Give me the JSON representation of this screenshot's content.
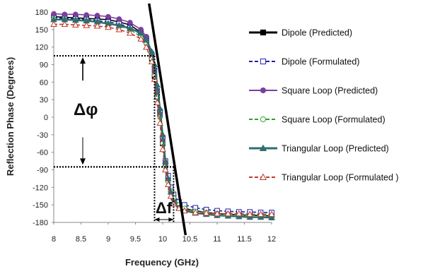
{
  "chart_data": {
    "type": "line",
    "title": "",
    "xlabel": "Frequency (GHz)",
    "ylabel": "Reflection Phase (Degrees)",
    "xlim": [
      8,
      12
    ],
    "ylim": [
      -180,
      180
    ],
    "xticks": [
      "8",
      "8.5",
      "9",
      "9.5",
      "10",
      "10.5",
      "11",
      "11.5",
      "12"
    ],
    "yticks": [
      "180",
      "150",
      "120",
      "90",
      "60",
      "30",
      "0",
      "-30",
      "-60",
      "-90",
      "-120",
      "-150",
      "-180"
    ],
    "grid": false,
    "legend_position": "right",
    "series": [
      {
        "name": "Dipole (Predicted)",
        "color": "#000000",
        "marker": "square-filled",
        "dashed": false,
        "x": [
          8,
          8.2,
          8.4,
          8.6,
          8.8,
          9,
          9.2,
          9.4,
          9.6,
          9.7,
          9.8,
          9.85,
          9.9,
          9.95,
          10,
          10.05,
          10.1,
          10.15,
          10.2,
          10.3,
          10.4,
          10.6,
          10.8,
          11,
          11.2,
          11.4,
          11.6,
          11.8,
          12
        ],
        "y": [
          172,
          171,
          170,
          169,
          168,
          167,
          163,
          158,
          145,
          135,
          100,
          70,
          35,
          5,
          -45,
          -80,
          -105,
          -125,
          -138,
          -150,
          -156,
          -160,
          -163,
          -165,
          -166,
          -167,
          -168,
          -168,
          -169
        ]
      },
      {
        "name": "Dipole (Formulated)",
        "color": "#1f1fa8",
        "marker": "square-open",
        "dashed": true,
        "x": [
          8,
          8.2,
          8.4,
          8.6,
          8.8,
          9,
          9.2,
          9.4,
          9.6,
          9.7,
          9.8,
          9.85,
          9.9,
          9.95,
          10,
          10.05,
          10.1,
          10.15,
          10.2,
          10.3,
          10.4,
          10.6,
          10.8,
          11,
          11.2,
          11.4,
          11.6,
          11.8,
          12
        ],
        "y": [
          170,
          169,
          168,
          167,
          165,
          163,
          160,
          153,
          142,
          130,
          105,
          80,
          45,
          10,
          -35,
          -75,
          -100,
          -120,
          -132,
          -145,
          -150,
          -155,
          -158,
          -160,
          -161,
          -162,
          -162,
          -163,
          -163
        ]
      },
      {
        "name": "Square Loop (Predicted)",
        "color": "#7b3fa0",
        "marker": "circle-filled",
        "dashed": false,
        "x": [
          8,
          8.2,
          8.4,
          8.6,
          8.8,
          9,
          9.2,
          9.4,
          9.6,
          9.7,
          9.8,
          9.85,
          9.9,
          9.95,
          10,
          10.05,
          10.1,
          10.15,
          10.2,
          10.3,
          10.4,
          10.6,
          10.8,
          11,
          11.2,
          11.4,
          11.6,
          11.8,
          12
        ],
        "y": [
          177,
          176,
          176,
          175,
          174,
          172,
          168,
          162,
          150,
          138,
          110,
          80,
          45,
          5,
          -40,
          -80,
          -108,
          -128,
          -140,
          -152,
          -158,
          -163,
          -166,
          -168,
          -169,
          -170,
          -171,
          -171,
          -172
        ]
      },
      {
        "name": "Square Loop (Formulated)",
        "color": "#2ca02c",
        "marker": "circle-open",
        "dashed": true,
        "x": [
          8,
          8.2,
          8.4,
          8.6,
          8.8,
          9,
          9.2,
          9.4,
          9.6,
          9.7,
          9.8,
          9.85,
          9.9,
          9.95,
          10,
          10.05,
          10.1,
          10.15,
          10.2,
          10.3,
          10.4,
          10.6,
          10.8,
          11,
          11.2,
          11.4,
          11.6,
          11.8,
          12
        ],
        "y": [
          168,
          167,
          166,
          165,
          163,
          160,
          156,
          150,
          138,
          126,
          100,
          72,
          35,
          0,
          -45,
          -85,
          -110,
          -126,
          -138,
          -150,
          -156,
          -161,
          -163,
          -165,
          -166,
          -167,
          -168,
          -168,
          -169
        ]
      },
      {
        "name": "Triangular Loop (Predicted)",
        "color": "#2e6e6e",
        "marker": "triangle-filled",
        "dashed": false,
        "x": [
          8,
          8.2,
          8.4,
          8.6,
          8.8,
          9,
          9.2,
          9.4,
          9.6,
          9.7,
          9.8,
          9.85,
          9.9,
          9.95,
          10,
          10.05,
          10.1,
          10.15,
          10.2,
          10.3,
          10.4,
          10.6,
          10.8,
          11,
          11.2,
          11.4,
          11.6,
          11.8,
          12
        ],
        "y": [
          167,
          167,
          166,
          165,
          163,
          160,
          157,
          152,
          144,
          132,
          112,
          90,
          55,
          15,
          -30,
          -75,
          -105,
          -128,
          -145,
          -155,
          -160,
          -164,
          -166,
          -168,
          -169,
          -170,
          -171,
          -171,
          -172
        ]
      },
      {
        "name": "Triangular Loop (Formulated )",
        "color": "#c0392b",
        "marker": "triangle-open",
        "dashed": true,
        "x": [
          8,
          8.2,
          8.4,
          8.6,
          8.8,
          9,
          9.2,
          9.4,
          9.6,
          9.7,
          9.8,
          9.85,
          9.9,
          9.95,
          10,
          10.05,
          10.1,
          10.15,
          10.2,
          10.3,
          10.4,
          10.6,
          10.8,
          11,
          11.2,
          11.4,
          11.6,
          11.8,
          12
        ],
        "y": [
          159,
          159,
          158,
          157,
          156,
          154,
          150,
          144,
          134,
          120,
          95,
          65,
          25,
          -10,
          -55,
          -90,
          -115,
          -135,
          -148,
          -156,
          -160,
          -163,
          -164,
          -165,
          -165,
          -165,
          -166,
          -166,
          -166
        ]
      }
    ],
    "annotations": {
      "delta_phi": "Δφ",
      "delta_f": "Δf",
      "upper_phase_level": 105,
      "lower_phase_level": -85,
      "lower_freq": 9.85,
      "upper_freq": 10.2,
      "slope_line": {
        "x": [
          9.75,
          10.42
        ],
        "y": [
          180,
          -180
        ],
        "color": "#000000"
      }
    }
  }
}
